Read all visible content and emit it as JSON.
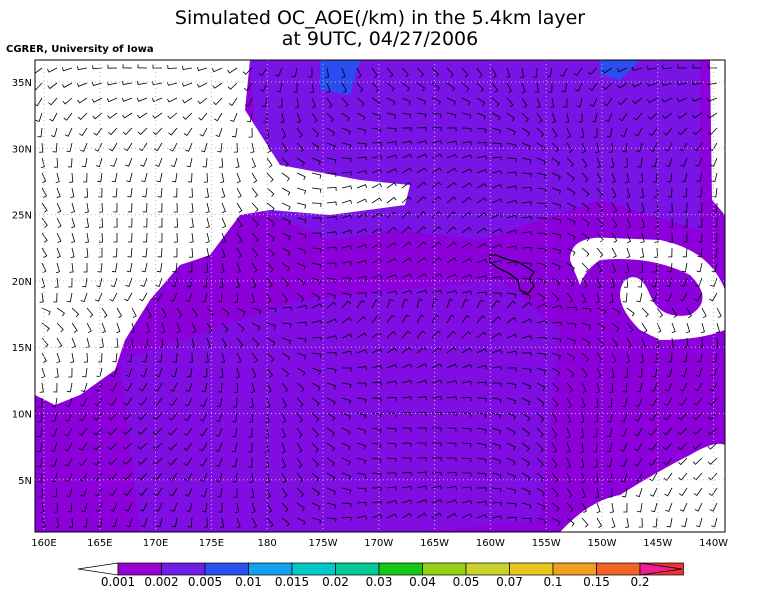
{
  "title": [
    "Simulated OC_AOE(/km) in the 5.4km layer",
    "at 9UTC, 04/27/2006"
  ],
  "credit": "CGRER, University of Iowa",
  "lat_labels": [
    "35N",
    "30N",
    "25N",
    "20N",
    "15N",
    "10N",
    "5N"
  ],
  "lon_labels": [
    "160E",
    "165E",
    "170E",
    "175E",
    "180",
    "175W",
    "170W",
    "165W",
    "160W",
    "155W",
    "150W",
    "145W",
    "140W"
  ],
  "colorbar": {
    "labels": [
      "0.001",
      "0.002",
      "0.005",
      "0.01",
      "0.015",
      "0.02",
      "0.03",
      "0.04",
      "0.05",
      "0.07",
      "0.1",
      "0.15",
      "0.2"
    ],
    "colors": [
      "#ffffff",
      "#9600d2",
      "#6e1ee6",
      "#2850f0",
      "#14a0f0",
      "#00c8c8",
      "#00c896",
      "#14c814",
      "#96d214",
      "#c8d228",
      "#e6c81e",
      "#f0a01e",
      "#f06428",
      "#f03232",
      "#f01e96"
    ]
  }
}
